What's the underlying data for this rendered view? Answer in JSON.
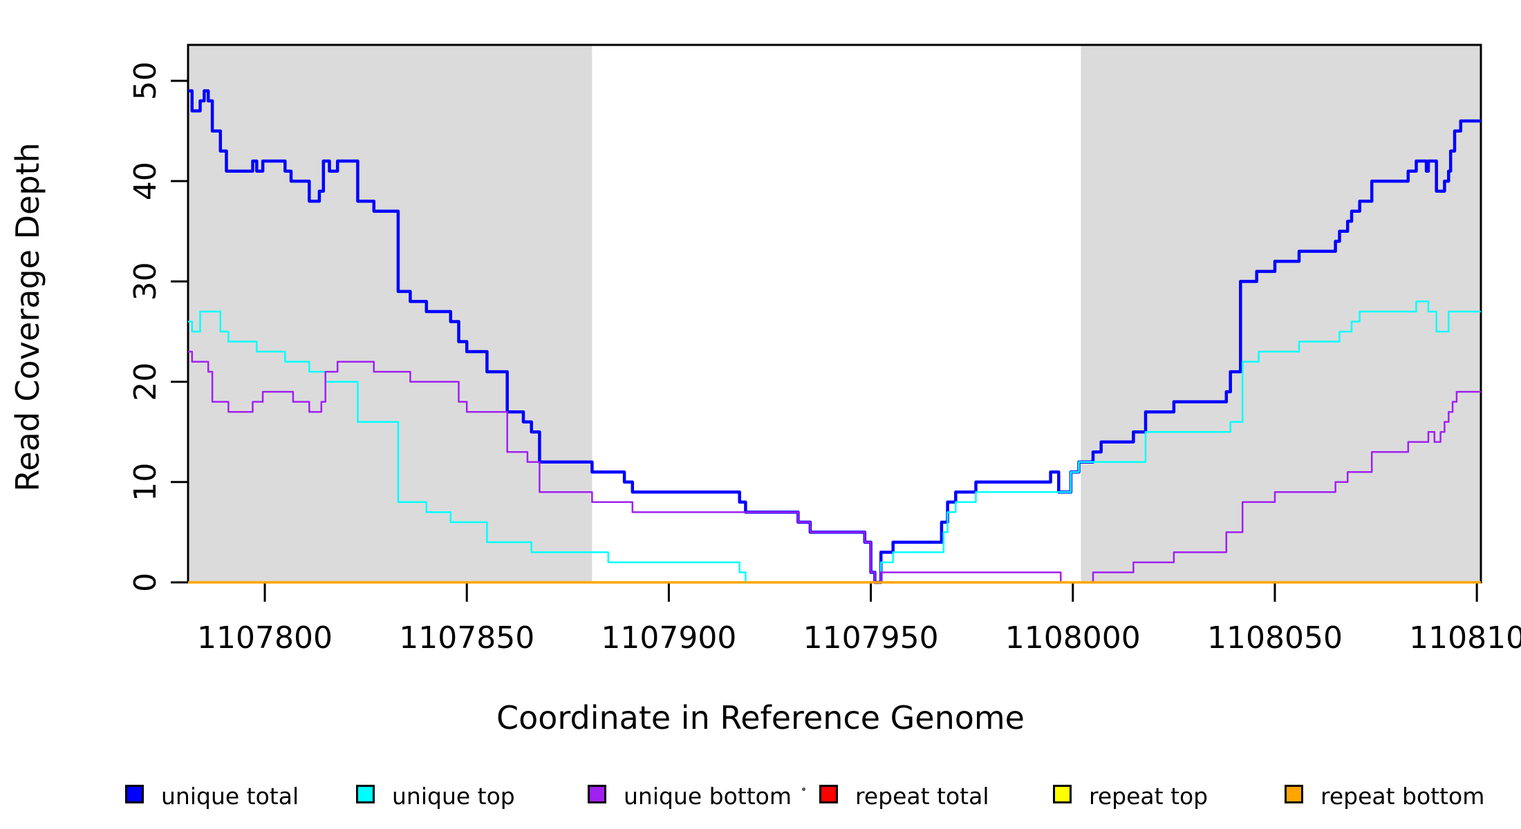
{
  "chart_data": {
    "type": "line",
    "subtype": "step-coverage",
    "title": "",
    "xlabel": "Coordinate in Reference Genome",
    "ylabel": "Read Coverage Depth",
    "xlim": [
      1107781,
      1108101
    ],
    "ylim": [
      0,
      53.58
    ],
    "x_ticks": [
      1107800,
      1107850,
      1107900,
      1107950,
      1108000,
      1108050,
      1108100
    ],
    "x_tick_labels": [
      "1107800",
      "1107850",
      "1107900",
      "1107950",
      "1108000",
      "1108050",
      "1108100"
    ],
    "y_ticks": [
      0,
      10,
      20,
      30,
      40,
      50
    ],
    "y_tick_labels": [
      "0",
      "10",
      "20",
      "30",
      "40",
      "50"
    ],
    "grid": false,
    "legend_position": "bottom",
    "background_bands": [
      {
        "name": "left-gray-region",
        "x0": 1107781,
        "x1": 1107881,
        "color": "#DBDBDB"
      },
      {
        "name": "right-gray-region",
        "x0": 1108002,
        "x1": 1108101,
        "color": "#DBDBDB"
      }
    ],
    "series": [
      {
        "name": "unique total",
        "color": "#0000FF",
        "width": 4.5,
        "steps": [
          [
            1107781,
            49
          ],
          [
            1107782,
            47
          ],
          [
            1107784,
            48
          ],
          [
            1107785,
            49
          ],
          [
            1107786,
            48
          ],
          [
            1107787,
            45
          ],
          [
            1107789,
            43
          ],
          [
            1107790.5,
            41
          ],
          [
            1107797,
            42
          ],
          [
            1107798,
            41
          ],
          [
            1107799.5,
            42
          ],
          [
            1107805,
            41
          ],
          [
            1107806.5,
            40
          ],
          [
            1107811,
            38
          ],
          [
            1107813.5,
            39
          ],
          [
            1107814.5,
            42
          ],
          [
            1107816,
            41
          ],
          [
            1107818,
            42
          ],
          [
            1107823,
            38
          ],
          [
            1107827,
            37
          ],
          [
            1107833,
            29
          ],
          [
            1107836,
            28
          ],
          [
            1107840,
            27
          ],
          [
            1107846,
            26
          ],
          [
            1107848,
            24
          ],
          [
            1107850,
            23
          ],
          [
            1107855,
            21
          ],
          [
            1107860,
            17
          ],
          [
            1107864,
            16
          ],
          [
            1107866,
            15
          ],
          [
            1107868,
            12
          ],
          [
            1107881,
            11
          ],
          [
            1107889,
            10
          ],
          [
            1107891,
            9
          ],
          [
            1107917.5,
            8
          ],
          [
            1107919,
            7
          ],
          [
            1107932,
            6
          ],
          [
            1107935,
            5
          ],
          [
            1107948.5,
            4
          ],
          [
            1107950,
            1
          ],
          [
            1107951,
            0
          ],
          [
            1107952.5,
            3
          ],
          [
            1107955.5,
            4
          ],
          [
            1107967.5,
            6
          ],
          [
            1107969,
            8
          ],
          [
            1107971,
            9
          ],
          [
            1107976,
            10
          ],
          [
            1107994.5,
            11
          ],
          [
            1107996.5,
            9
          ],
          [
            1107999.5,
            11
          ],
          [
            1108001.5,
            12
          ],
          [
            1108005,
            13
          ],
          [
            1108007,
            14
          ],
          [
            1108015,
            15
          ],
          [
            1108018,
            17
          ],
          [
            1108025,
            18
          ],
          [
            1108038,
            19
          ],
          [
            1108039,
            21
          ],
          [
            1108041.5,
            30
          ],
          [
            1108045.5,
            31
          ],
          [
            1108050,
            32
          ],
          [
            1108056,
            33
          ],
          [
            1108065,
            34
          ],
          [
            1108066,
            35
          ],
          [
            1108068,
            36
          ],
          [
            1108069,
            37
          ],
          [
            1108071,
            38
          ],
          [
            1108074,
            40
          ],
          [
            1108083,
            41
          ],
          [
            1108085,
            42
          ],
          [
            1108087.5,
            41
          ],
          [
            1108088,
            42
          ],
          [
            1108090,
            39
          ],
          [
            1108092,
            40
          ],
          [
            1108093,
            41
          ],
          [
            1108093.5,
            43
          ],
          [
            1108094.5,
            45
          ],
          [
            1108096,
            46
          ]
        ]
      },
      {
        "name": "unique top",
        "color": "#00FFFF",
        "width": 2.5,
        "steps": [
          [
            1107781,
            26
          ],
          [
            1107782,
            25
          ],
          [
            1107784,
            27
          ],
          [
            1107789,
            25
          ],
          [
            1107791,
            24
          ],
          [
            1107798,
            23
          ],
          [
            1107805,
            22
          ],
          [
            1107811,
            21
          ],
          [
            1107815,
            20
          ],
          [
            1107823,
            16
          ],
          [
            1107833,
            8
          ],
          [
            1107840,
            7
          ],
          [
            1107846,
            6
          ],
          [
            1107855,
            4
          ],
          [
            1107866,
            3
          ],
          [
            1107885,
            2
          ],
          [
            1107917.5,
            1
          ],
          [
            1107919,
            0
          ],
          [
            1107952.5,
            2
          ],
          [
            1107955.5,
            3
          ],
          [
            1107968,
            5
          ],
          [
            1107969,
            7
          ],
          [
            1107971,
            8
          ],
          [
            1107976,
            9
          ],
          [
            1107999.5,
            11
          ],
          [
            1108001.5,
            12
          ],
          [
            1108018,
            15
          ],
          [
            1108039,
            16
          ],
          [
            1108042,
            22
          ],
          [
            1108046,
            23
          ],
          [
            1108056,
            24
          ],
          [
            1108066,
            25
          ],
          [
            1108069,
            26
          ],
          [
            1108071,
            27
          ],
          [
            1108085,
            28
          ],
          [
            1108088,
            27
          ],
          [
            1108090,
            25
          ],
          [
            1108093,
            27
          ]
        ]
      },
      {
        "name": "unique bottom",
        "color": "#A020F0",
        "width": 2.5,
        "steps": [
          [
            1107781,
            23
          ],
          [
            1107782,
            22
          ],
          [
            1107786,
            21
          ],
          [
            1107787,
            18
          ],
          [
            1107791,
            17
          ],
          [
            1107797,
            18
          ],
          [
            1107799.5,
            19
          ],
          [
            1107807,
            18
          ],
          [
            1107811,
            17
          ],
          [
            1107814,
            18
          ],
          [
            1107815,
            21
          ],
          [
            1107818,
            22
          ],
          [
            1107827,
            21
          ],
          [
            1107836,
            20
          ],
          [
            1107848,
            18
          ],
          [
            1107850,
            17
          ],
          [
            1107860,
            13
          ],
          [
            1107865,
            12
          ],
          [
            1107868,
            9
          ],
          [
            1107881,
            8
          ],
          [
            1107891,
            7
          ],
          [
            1107932,
            6
          ],
          [
            1107935,
            5
          ],
          [
            1107948.5,
            4
          ],
          [
            1107950,
            1
          ],
          [
            1107951,
            0
          ],
          [
            1107952.5,
            1
          ],
          [
            1107997,
            0
          ],
          [
            1108005,
            1
          ],
          [
            1108015,
            2
          ],
          [
            1108025,
            3
          ],
          [
            1108038,
            5
          ],
          [
            1108042,
            8
          ],
          [
            1108050,
            9
          ],
          [
            1108065,
            10
          ],
          [
            1108068,
            11
          ],
          [
            1108074,
            13
          ],
          [
            1108083,
            14
          ],
          [
            1108088,
            15
          ],
          [
            1108089.5,
            14
          ],
          [
            1108091,
            15
          ],
          [
            1108092,
            16
          ],
          [
            1108093,
            17
          ],
          [
            1108094,
            18
          ],
          [
            1108095,
            19
          ]
        ]
      },
      {
        "name": "repeat total",
        "color": "#FF0000",
        "width": 2.5,
        "steps": [
          [
            1107781,
            0
          ]
        ]
      },
      {
        "name": "repeat top",
        "color": "#FFFF00",
        "width": 2.5,
        "steps": [
          [
            1107781,
            0
          ]
        ]
      },
      {
        "name": "repeat bottom",
        "color": "#FFA500",
        "width": 3.5,
        "steps": [
          [
            1107781,
            0
          ]
        ]
      }
    ],
    "legend": [
      {
        "label": "unique total",
        "color": "#0000FF"
      },
      {
        "label": "unique top",
        "color": "#00FFFF"
      },
      {
        "label": "unique bottom",
        "color": "#A020F0"
      },
      {
        "label": "repeat total",
        "color": "#FF0000"
      },
      {
        "label": "repeat top",
        "color": "#FFFF00"
      },
      {
        "label": "repeat bottom",
        "color": "#FFA500"
      }
    ]
  }
}
